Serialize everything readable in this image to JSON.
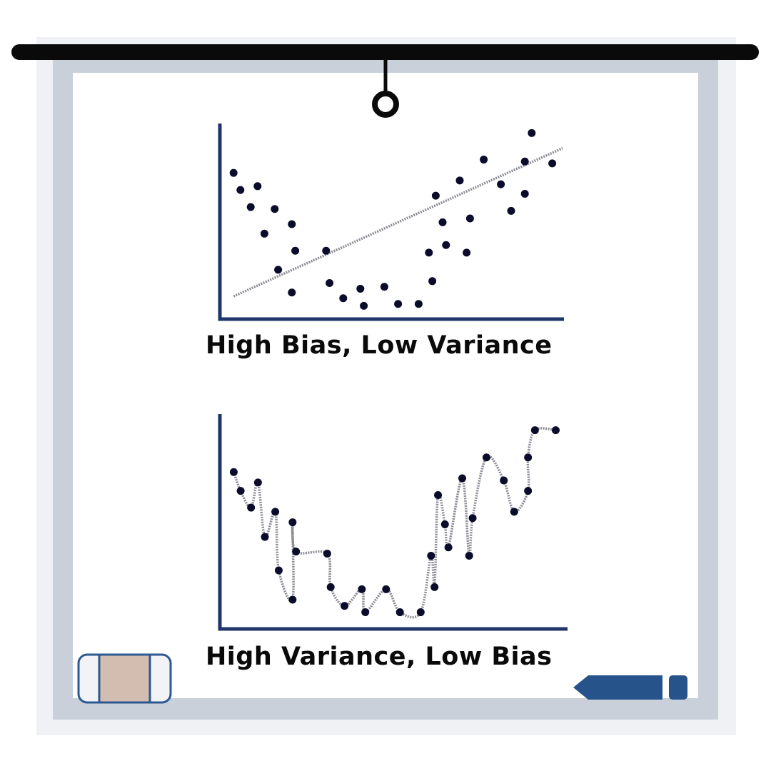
{
  "colors": {
    "backdrop": "#eff1f4",
    "frame": "#c9d0d9",
    "board": "#ffffff",
    "rod": "#0a0a0a",
    "axis": "#20356a",
    "point": "#0b0b2b",
    "fit_line": "#8c8c96",
    "eraser_body": "#f1f3f6",
    "eraser_felt": "#d3bdb0",
    "eraser_outline": "#2d5890",
    "marker": "#26548a"
  },
  "icons": {
    "rod": "hanging-rod-icon",
    "hook": "hanger-hook-icon",
    "eraser": "whiteboard-eraser-icon",
    "marker": "marker-pen-icon"
  },
  "chart_data": [
    {
      "type": "scatter",
      "title": "High Bias, Low Variance",
      "xlabel": "",
      "ylabel": "",
      "xlim": [
        0,
        10
      ],
      "ylim": [
        0,
        10
      ],
      "grid": false,
      "fit": {
        "kind": "linear",
        "points": [
          [
            0.4,
            1.2
          ],
          [
            10,
            9.0
          ]
        ]
      },
      "points": [
        [
          0.4,
          7.7
        ],
        [
          0.6,
          6.8
        ],
        [
          0.9,
          5.9
        ],
        [
          1.1,
          7.0
        ],
        [
          1.3,
          4.5
        ],
        [
          1.6,
          5.8
        ],
        [
          1.7,
          2.6
        ],
        [
          2.1,
          1.4
        ],
        [
          2.1,
          5.0
        ],
        [
          2.2,
          3.6
        ],
        [
          3.1,
          3.6
        ],
        [
          3.2,
          1.9
        ],
        [
          3.6,
          1.1
        ],
        [
          4.1,
          1.6
        ],
        [
          4.2,
          0.7
        ],
        [
          4.8,
          1.7
        ],
        [
          5.2,
          0.8
        ],
        [
          5.8,
          0.8
        ],
        [
          6.1,
          3.5
        ],
        [
          6.2,
          2.0
        ],
        [
          6.3,
          6.5
        ],
        [
          6.5,
          5.1
        ],
        [
          6.6,
          3.9
        ],
        [
          7.0,
          7.3
        ],
        [
          7.2,
          3.5
        ],
        [
          7.3,
          5.3
        ],
        [
          7.7,
          8.4
        ],
        [
          8.2,
          7.1
        ],
        [
          8.5,
          5.7
        ],
        [
          8.9,
          6.6
        ],
        [
          8.9,
          8.3
        ],
        [
          9.1,
          9.8
        ],
        [
          9.7,
          8.2
        ]
      ]
    },
    {
      "type": "scatter",
      "title": "High Variance, Low Bias",
      "xlabel": "",
      "ylabel": "",
      "xlim": [
        0,
        10
      ],
      "ylim": [
        0,
        10
      ],
      "grid": false,
      "fit": {
        "kind": "interpolating-curve"
      },
      "points": [
        [
          0.4,
          7.5
        ],
        [
          0.6,
          6.6
        ],
        [
          0.9,
          5.8
        ],
        [
          1.1,
          7.0
        ],
        [
          1.3,
          4.4
        ],
        [
          1.6,
          5.6
        ],
        [
          1.7,
          2.8
        ],
        [
          2.1,
          1.4
        ],
        [
          2.1,
          5.1
        ],
        [
          2.2,
          3.7
        ],
        [
          3.1,
          3.6
        ],
        [
          3.2,
          2.0
        ],
        [
          3.6,
          1.1
        ],
        [
          4.1,
          1.9
        ],
        [
          4.2,
          0.8
        ],
        [
          4.8,
          1.9
        ],
        [
          5.2,
          0.8
        ],
        [
          5.8,
          0.8
        ],
        [
          6.1,
          3.5
        ],
        [
          6.2,
          2.0
        ],
        [
          6.3,
          6.4
        ],
        [
          6.5,
          5.0
        ],
        [
          6.6,
          3.9
        ],
        [
          7.0,
          7.2
        ],
        [
          7.2,
          3.5
        ],
        [
          7.3,
          5.3
        ],
        [
          7.7,
          8.2
        ],
        [
          8.2,
          7.1
        ],
        [
          8.5,
          5.6
        ],
        [
          8.9,
          6.6
        ],
        [
          8.9,
          8.2
        ],
        [
          9.1,
          9.5
        ],
        [
          9.7,
          9.5
        ]
      ]
    }
  ]
}
